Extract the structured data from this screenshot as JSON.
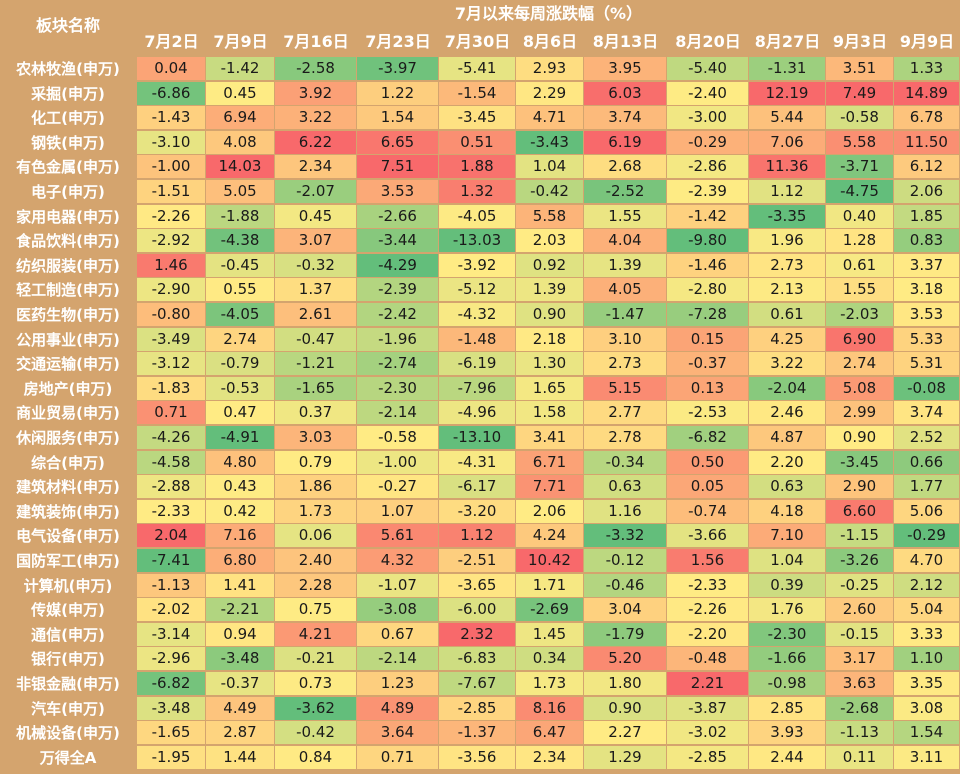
{
  "chart_data": {
    "type": "heatmap",
    "title": "7月以来每周涨跌幅（%）",
    "row_header": "板块名称",
    "columns": [
      "7月2日",
      "7月9日",
      "7月16日",
      "7月23日",
      "7月30日",
      "8月6日",
      "8月13日",
      "8月20日",
      "8月27日",
      "9月3日",
      "9月9日"
    ],
    "rows": [
      "农林牧渔(申万)",
      "采掘(申万)",
      "化工(申万)",
      "钢铁(申万)",
      "有色金属(申万)",
      "电子(申万)",
      "家用电器(申万)",
      "食品饮料(申万)",
      "纺织服装(申万)",
      "轻工制造(申万)",
      "医药生物(申万)",
      "公用事业(申万)",
      "交通运输(申万)",
      "房地产(申万)",
      "商业贸易(申万)",
      "休闲服务(申万)",
      "综合(申万)",
      "建筑材料(申万)",
      "建筑装饰(申万)",
      "电气设备(申万)",
      "国防军工(申万)",
      "计算机(申万)",
      "传媒(申万)",
      "通信(申万)",
      "银行(申万)",
      "非银金融(申万)",
      "汽车(申万)",
      "机械设备(申万)",
      "万得全A"
    ],
    "values": [
      [
        0.04,
        -1.42,
        -2.58,
        -3.97,
        -5.41,
        2.93,
        3.95,
        -5.4,
        -1.31,
        3.51,
        1.33
      ],
      [
        -6.86,
        0.45,
        3.92,
        1.22,
        -1.54,
        2.29,
        6.03,
        -2.4,
        12.19,
        7.49,
        14.89
      ],
      [
        -1.43,
        6.94,
        3.22,
        1.54,
        -3.45,
        4.71,
        3.74,
        -3.0,
        5.44,
        -0.58,
        6.78
      ],
      [
        -3.1,
        4.08,
        6.22,
        6.65,
        0.51,
        -3.43,
        6.19,
        -0.29,
        7.06,
        5.58,
        11.5
      ],
      [
        -1.0,
        14.03,
        2.34,
        7.51,
        1.88,
        1.04,
        2.68,
        -2.86,
        11.36,
        -3.71,
        6.12
      ],
      [
        -1.51,
        5.05,
        -2.07,
        3.53,
        1.32,
        -0.42,
        -2.52,
        -2.39,
        1.12,
        -4.75,
        2.06
      ],
      [
        -2.26,
        -1.88,
        0.45,
        -2.66,
        -4.05,
        5.58,
        1.55,
        -1.42,
        -3.35,
        0.4,
        1.85
      ],
      [
        -2.92,
        -4.38,
        3.07,
        -3.44,
        -13.03,
        2.03,
        4.04,
        -9.8,
        1.96,
        1.28,
        0.83
      ],
      [
        1.46,
        -0.45,
        -0.32,
        -4.29,
        -3.92,
        0.92,
        1.39,
        -1.46,
        2.73,
        0.61,
        3.37
      ],
      [
        -2.9,
        0.55,
        1.37,
        -2.39,
        -5.12,
        1.39,
        4.05,
        -2.8,
        2.13,
        1.55,
        3.18
      ],
      [
        -0.8,
        -4.05,
        2.61,
        -2.42,
        -4.32,
        0.9,
        -1.47,
        -7.28,
        0.61,
        -2.03,
        3.53
      ],
      [
        -3.49,
        2.74,
        -0.47,
        -1.96,
        -1.48,
        2.18,
        3.1,
        0.15,
        4.25,
        6.9,
        5.33
      ],
      [
        -3.12,
        -0.79,
        -1.21,
        -2.74,
        -6.19,
        1.3,
        2.73,
        -0.37,
        3.22,
        2.74,
        5.31
      ],
      [
        -1.83,
        -0.53,
        -1.65,
        -2.3,
        -7.96,
        1.65,
        5.15,
        0.13,
        -2.04,
        5.08,
        -0.08
      ],
      [
        0.71,
        0.47,
        0.37,
        -2.14,
        -4.96,
        1.58,
        2.77,
        -2.53,
        2.46,
        2.99,
        3.74
      ],
      [
        -4.26,
        -4.91,
        3.03,
        -0.58,
        -13.1,
        3.41,
        2.78,
        -6.82,
        4.87,
        0.9,
        2.52
      ],
      [
        -4.58,
        4.8,
        0.79,
        -1.0,
        -4.31,
        6.71,
        -0.34,
        0.5,
        2.2,
        -3.45,
        0.66
      ],
      [
        -2.88,
        0.43,
        1.86,
        -0.27,
        -6.17,
        7.71,
        0.63,
        0.05,
        0.63,
        2.9,
        1.77
      ],
      [
        -2.33,
        0.42,
        1.73,
        1.07,
        -3.2,
        2.06,
        1.16,
        -0.74,
        4.18,
        6.6,
        5.06
      ],
      [
        2.04,
        7.16,
        0.06,
        5.61,
        1.12,
        4.24,
        -3.32,
        -3.66,
        7.1,
        -1.15,
        -0.29
      ],
      [
        -7.41,
        6.8,
        2.4,
        4.32,
        -2.51,
        10.42,
        -0.12,
        1.56,
        1.04,
        -3.26,
        4.7
      ],
      [
        -1.13,
        1.41,
        2.28,
        -1.07,
        -3.65,
        1.71,
        -0.46,
        -2.33,
        0.39,
        -0.25,
        2.12
      ],
      [
        -2.02,
        -2.21,
        0.75,
        -3.08,
        -6.0,
        -2.69,
        3.04,
        -2.26,
        1.76,
        2.6,
        5.04
      ],
      [
        -3.14,
        0.94,
        4.21,
        0.67,
        2.32,
        1.45,
        -1.79,
        -2.2,
        -2.3,
        -0.15,
        3.33
      ],
      [
        -2.96,
        -3.48,
        -0.21,
        -2.14,
        -6.83,
        0.34,
        5.2,
        -0.48,
        -1.66,
        3.17,
        1.1
      ],
      [
        -6.82,
        -0.37,
        0.73,
        1.23,
        -7.67,
        1.73,
        1.8,
        2.21,
        -0.98,
        3.63,
        3.35
      ],
      [
        -3.48,
        4.49,
        -3.62,
        4.89,
        -2.85,
        8.16,
        0.9,
        -3.87,
        2.85,
        -2.68,
        3.08
      ],
      [
        -1.65,
        2.87,
        -0.42,
        3.64,
        -1.37,
        6.47,
        2.27,
        -3.02,
        3.93,
        -1.13,
        1.54
      ],
      [
        -1.95,
        1.44,
        0.84,
        0.71,
        -3.56,
        2.34,
        1.29,
        -2.85,
        2.44,
        0.11,
        3.11
      ]
    ],
    "color_scale": {
      "low": "#63BE7B",
      "mid": "#FFEB84",
      "high": "#F8696B"
    },
    "background": "#D4A46E"
  }
}
